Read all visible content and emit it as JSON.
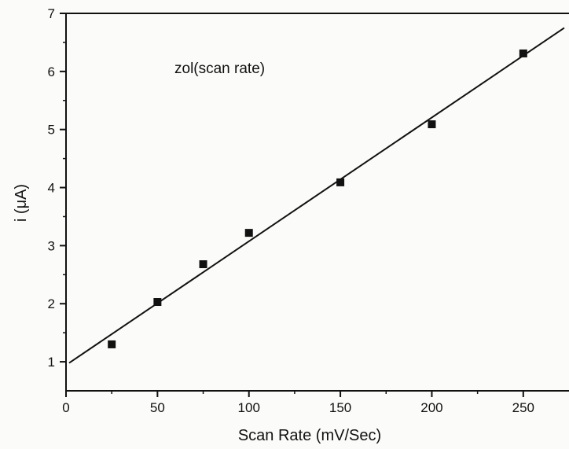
{
  "chart_data": {
    "type": "scatter",
    "xlabel": "Scan Rate (mV/Sec)",
    "ylabel": "i (μA)",
    "annotation": "zol(scan rate)",
    "xlim": [
      0,
      275
    ],
    "ylim": [
      0.5,
      7
    ],
    "x_ticks": [
      0,
      50,
      100,
      150,
      200,
      250
    ],
    "y_ticks": [
      1,
      2,
      3,
      4,
      5,
      6,
      7
    ],
    "x_tick_labels": [
      "0",
      "50",
      "100",
      "150",
      "200",
      "250"
    ],
    "y_tick_labels": [
      "1",
      "2",
      "3",
      "4",
      "5",
      "6",
      "7"
    ],
    "series": [
      {
        "x": [
          25,
          50,
          75,
          100,
          150,
          200,
          250
        ],
        "y": [
          1.3,
          2.03,
          2.68,
          3.22,
          4.09,
          5.09,
          6.31
        ]
      }
    ],
    "fit_line": {
      "x": [
        0,
        275
      ],
      "y": [
        0.98,
        6.75
      ]
    },
    "grid": false,
    "colors": {
      "marker": "#111111",
      "line": "#111111",
      "axis": "#111111"
    }
  }
}
